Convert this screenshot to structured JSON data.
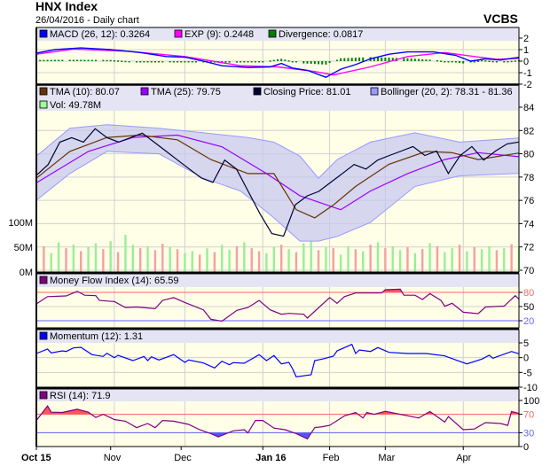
{
  "header": {
    "title": "HNX Index",
    "subtitle": "26/04/2016 - Daily chart",
    "brand": "VCBS"
  },
  "colors": {
    "plot_bg": "#ffffe8",
    "legend_bg": "#e4e4f4",
    "grid": "#d0d0d0",
    "macd": "#0000ff",
    "exp": "#ff00ff",
    "divergence": "#008000",
    "tma10": "#663300",
    "tma25": "#9900ff",
    "close": "#000033",
    "bollinger": "#9999ff",
    "bollinger_fill": "#c8c8f0",
    "vol_up": "#99ee99",
    "vol_down": "#f4a0a0",
    "mfi": "#800080",
    "momentum": "#0000ff",
    "rsi": "#800080",
    "upper_line": "#ff6666",
    "lower_line": "#6666ff"
  },
  "x_axis": {
    "labels": [
      {
        "idx": 0,
        "text": "Oct 15",
        "bold": true
      },
      {
        "idx": 20,
        "text": "Nov"
      },
      {
        "idx": 39,
        "text": "Dec"
      },
      {
        "idx": 61,
        "text": "Jan 16",
        "bold": true
      },
      {
        "idx": 79,
        "text": "Feb"
      },
      {
        "idx": 94,
        "text": "Mar"
      },
      {
        "idx": 115,
        "text": "Apr"
      }
    ],
    "grid_idx": [
      21,
      40,
      61,
      79,
      94,
      115
    ],
    "max_idx": 130
  },
  "chart_data": [
    {
      "type": "line",
      "name": "MACD panel",
      "legend": [
        {
          "label": "MACD (26, 12): 0.3264",
          "color": "#0000ff"
        },
        {
          "label": "EXP (9): 0.2448",
          "color": "#ff00ff"
        },
        {
          "label": "Divergence: 0.0817",
          "color": "#008000"
        }
      ],
      "yticks": [
        "2",
        "1",
        "0",
        "-1",
        "-2"
      ],
      "ylim": [
        -2,
        2
      ],
      "macd": [
        [
          0,
          0.7
        ],
        [
          5,
          1.0
        ],
        [
          12,
          1.15
        ],
        [
          20,
          1.0
        ],
        [
          28,
          0.75
        ],
        [
          35,
          0.4
        ],
        [
          40,
          0.35
        ],
        [
          45,
          0.0
        ],
        [
          50,
          -0.4
        ],
        [
          57,
          -0.55
        ],
        [
          63,
          -0.5
        ],
        [
          66,
          -0.2
        ],
        [
          69,
          -0.6
        ],
        [
          73,
          -0.8
        ],
        [
          78,
          -1.4
        ],
        [
          82,
          -0.7
        ],
        [
          86,
          -0.3
        ],
        [
          90,
          0.2
        ],
        [
          95,
          0.6
        ],
        [
          100,
          0.8
        ],
        [
          107,
          0.8
        ],
        [
          113,
          0.5
        ],
        [
          117,
          0.0
        ],
        [
          121,
          0.2
        ],
        [
          125,
          0.1
        ],
        [
          130,
          0.33
        ]
      ],
      "exp": [
        [
          0,
          0.6
        ],
        [
          10,
          1.05
        ],
        [
          25,
          0.85
        ],
        [
          40,
          0.4
        ],
        [
          55,
          -0.4
        ],
        [
          65,
          -0.5
        ],
        [
          75,
          -0.9
        ],
        [
          80,
          -1.2
        ],
        [
          90,
          -0.5
        ],
        [
          100,
          0.4
        ],
        [
          110,
          0.75
        ],
        [
          118,
          0.4
        ],
        [
          124,
          0.15
        ],
        [
          130,
          0.24
        ]
      ],
      "divergence": [
        [
          0,
          0.1
        ],
        [
          10,
          0.12
        ],
        [
          20,
          0.1
        ],
        [
          30,
          -0.1
        ],
        [
          40,
          -0.05
        ],
        [
          50,
          -0.15
        ],
        [
          60,
          -0.08
        ],
        [
          66,
          0.2
        ],
        [
          72,
          -0.2
        ],
        [
          78,
          -0.3
        ],
        [
          82,
          0.25
        ],
        [
          90,
          0.35
        ],
        [
          100,
          0.25
        ],
        [
          108,
          0.08
        ],
        [
          115,
          -0.2
        ],
        [
          120,
          0.1
        ],
        [
          125,
          -0.05
        ],
        [
          130,
          0.08
        ]
      ]
    },
    {
      "type": "line",
      "name": "Price panel",
      "legend": [
        {
          "label": "TMA (10): 80.07",
          "color": "#663300"
        },
        {
          "label": "TMA (25): 79.75",
          "color": "#9900ff"
        },
        {
          "label": "Closing Price: 81.01",
          "color": "#000033"
        },
        {
          "label": "Bollinger (20, 2): 78.31 - 81.36",
          "color": "#9999ff"
        },
        {
          "label": "Vol: 49.78M",
          "color": "#99ff99"
        }
      ],
      "yticks": [
        "84",
        "82",
        "80",
        "78",
        "76",
        "74",
        "72",
        "70"
      ],
      "ylim": [
        70,
        84
      ],
      "vol_ticks": [
        "100M",
        "50M",
        "0M"
      ],
      "vol_lim": [
        0,
        250
      ],
      "close": [
        78.15,
        79.08,
        81,
        81.38,
        81,
        82.15,
        81.38,
        81,
        81.38,
        81.77,
        81,
        80.23,
        79.46,
        78.69,
        77.92,
        77.54,
        79.46,
        78.69,
        76.77,
        74.85,
        73.15,
        72.92,
        75.62,
        76.38,
        76.77,
        77.54,
        78.31,
        79.08,
        78.69,
        79.46,
        79.85,
        80.23,
        80.62,
        79.85,
        80.23,
        78.31,
        79.85,
        80.62,
        79.46,
        80.23,
        80.85,
        81.01
      ],
      "tma10": [
        [
          0,
          77.9
        ],
        [
          9,
          80.2
        ],
        [
          19,
          81.4
        ],
        [
          28,
          81.6
        ],
        [
          38,
          81.2
        ],
        [
          47,
          79.5
        ],
        [
          57,
          78.3
        ],
        [
          64,
          78.3
        ],
        [
          70,
          75.2
        ],
        [
          75,
          74.5
        ],
        [
          80,
          75.6
        ],
        [
          86,
          77.2
        ],
        [
          95,
          79.1
        ],
        [
          105,
          80.2
        ],
        [
          112,
          80.1
        ],
        [
          119,
          79.5
        ],
        [
          130,
          80.07
        ]
      ],
      "tma25": [
        [
          0,
          77.5
        ],
        [
          14,
          80.2
        ],
        [
          26,
          81.4
        ],
        [
          38,
          81.6
        ],
        [
          50,
          80.6
        ],
        [
          62,
          78.3
        ],
        [
          71,
          76.4
        ],
        [
          82,
          75.2
        ],
        [
          90,
          76.8
        ],
        [
          100,
          78.3
        ],
        [
          110,
          79.5
        ],
        [
          119,
          80.1
        ],
        [
          130,
          79.75
        ]
      ],
      "boll_upper": [
        [
          0,
          79.8
        ],
        [
          9,
          82.2
        ],
        [
          19,
          82.5
        ],
        [
          33,
          82.2
        ],
        [
          45,
          81.8
        ],
        [
          57,
          81.4
        ],
        [
          64,
          81
        ],
        [
          71,
          79.8
        ],
        [
          76,
          77.9
        ],
        [
          81,
          79.5
        ],
        [
          90,
          81
        ],
        [
          102,
          81.8
        ],
        [
          114,
          81
        ],
        [
          130,
          81.36
        ]
      ],
      "boll_lower": [
        [
          0,
          76
        ],
        [
          9,
          78.3
        ],
        [
          19,
          80.2
        ],
        [
          33,
          80
        ],
        [
          45,
          77.9
        ],
        [
          55,
          76.8
        ],
        [
          64,
          74.5
        ],
        [
          71,
          72.5
        ],
        [
          76,
          72.5
        ],
        [
          81,
          72.9
        ],
        [
          90,
          74.1
        ],
        [
          102,
          77.2
        ],
        [
          114,
          78.1
        ],
        [
          130,
          78.31
        ]
      ],
      "volume_m": [
        45,
        52,
        38,
        60,
        48,
        55,
        42,
        50,
        58,
        46,
        62,
        40,
        75,
        55,
        48,
        52,
        44,
        57,
        50,
        46,
        38,
        42,
        35,
        48,
        40,
        55,
        45,
        52,
        60,
        48,
        42,
        38,
        50,
        55,
        46,
        40,
        58,
        62,
        44,
        50,
        48,
        35,
        52,
        46,
        42,
        55,
        60,
        48,
        52,
        44,
        50,
        38,
        46,
        58,
        52,
        40,
        48,
        55,
        42,
        50,
        46,
        52,
        44,
        48,
        56,
        50
      ],
      "volume_up": [
        1,
        0,
        1,
        1,
        0,
        1,
        0,
        1,
        1,
        0,
        1,
        0,
        1,
        1,
        0,
        1,
        0,
        0,
        1,
        0,
        1,
        1,
        0,
        1,
        0,
        1,
        1,
        0,
        1,
        0,
        0,
        1,
        1,
        0,
        1,
        0,
        1,
        1,
        0,
        1,
        0,
        1,
        1,
        0,
        1,
        0,
        1,
        0,
        1,
        1,
        0,
        1,
        0,
        1,
        0,
        1,
        1,
        0,
        1,
        0,
        1,
        1,
        0,
        1,
        0,
        1
      ]
    },
    {
      "type": "line",
      "name": "Money Flow Index",
      "legend": [
        {
          "label": "Money Flow Index (14): 65.59",
          "color": "#800080"
        }
      ],
      "yticks": [
        "80",
        "50",
        "20"
      ],
      "ylim": [
        20,
        80
      ],
      "upper": 80,
      "lower": 20,
      "values": [
        [
          0,
          55.6
        ],
        [
          3,
          71
        ],
        [
          8,
          72.5
        ],
        [
          11,
          82
        ],
        [
          13,
          74
        ],
        [
          16,
          73
        ],
        [
          17,
          63
        ],
        [
          21,
          60.5
        ],
        [
          24,
          48
        ],
        [
          27,
          49
        ],
        [
          32,
          45.5
        ],
        [
          34,
          63
        ],
        [
          37,
          69
        ],
        [
          40,
          58.6
        ],
        [
          45,
          43
        ],
        [
          47,
          23
        ],
        [
          50,
          19
        ],
        [
          54,
          42
        ],
        [
          57,
          48
        ],
        [
          60,
          63
        ],
        [
          63,
          43
        ],
        [
          66,
          33.7
        ],
        [
          68,
          35.5
        ],
        [
          72,
          33.7
        ],
        [
          73,
          25.6
        ],
        [
          79,
          69
        ],
        [
          81,
          57
        ],
        [
          83,
          71
        ],
        [
          86,
          78.7
        ],
        [
          93,
          78.7
        ],
        [
          94,
          85.6
        ],
        [
          98,
          86.8
        ],
        [
          99,
          74
        ],
        [
          102,
          74
        ],
        [
          104,
          65
        ],
        [
          106,
          77.4
        ],
        [
          109,
          63
        ],
        [
          110,
          50.6
        ],
        [
          112,
          57
        ],
        [
          115,
          38
        ],
        [
          119,
          35
        ],
        [
          121,
          49
        ],
        [
          126,
          51
        ],
        [
          129,
          73
        ],
        [
          130,
          65.59
        ]
      ]
    },
    {
      "type": "line",
      "name": "Momentum",
      "legend": [
        {
          "label": "Momentum (12): 1.31",
          "color": "#0000ff"
        }
      ],
      "yticks": [
        "5",
        "0",
        "-5",
        "-10"
      ],
      "ylim": [
        -10,
        5
      ],
      "values": [
        [
          0,
          1.4
        ],
        [
          3,
          2.9
        ],
        [
          4,
          1.6
        ],
        [
          7,
          2.3
        ],
        [
          8,
          2.1
        ],
        [
          10,
          3.3
        ],
        [
          12,
          3.5
        ],
        [
          15,
          1.0
        ],
        [
          18,
          0.4
        ],
        [
          19,
          1.5
        ],
        [
          21,
          0
        ],
        [
          22,
          0.8
        ],
        [
          26,
          -1
        ],
        [
          29,
          0.4
        ],
        [
          30,
          -1
        ],
        [
          31,
          0.3
        ],
        [
          33,
          -0.8
        ],
        [
          37,
          1
        ],
        [
          40,
          -1.6
        ],
        [
          41,
          -0.8
        ],
        [
          45,
          -1.8
        ],
        [
          48,
          -3.5
        ],
        [
          50,
          -1.2
        ],
        [
          52,
          -2.4
        ],
        [
          53,
          -1.7
        ],
        [
          56,
          -1.9
        ],
        [
          60,
          1
        ],
        [
          62,
          -1
        ],
        [
          64,
          0.7
        ],
        [
          66,
          -2.1
        ],
        [
          68,
          -1.6
        ],
        [
          69,
          -3.7
        ],
        [
          70,
          -6.5
        ],
        [
          74,
          -5.8
        ],
        [
          75,
          -1
        ],
        [
          77,
          -0.5
        ],
        [
          80,
          0.5
        ],
        [
          81,
          2.3
        ],
        [
          85,
          4.5
        ],
        [
          86,
          1.4
        ],
        [
          87,
          2.6
        ],
        [
          90,
          2.1
        ],
        [
          92,
          3.4
        ],
        [
          95,
          1.8
        ],
        [
          100,
          1.4
        ],
        [
          105,
          1.4
        ],
        [
          110,
          0.6
        ],
        [
          113,
          -0.8
        ],
        [
          116,
          -2.1
        ],
        [
          120,
          -0.5
        ],
        [
          122,
          0.8
        ],
        [
          123,
          -0.2
        ],
        [
          128,
          2.1
        ],
        [
          130,
          1.31
        ]
      ]
    },
    {
      "type": "line",
      "name": "RSI",
      "legend": [
        {
          "label": "RSI (14): 71.9",
          "color": "#800080"
        }
      ],
      "yticks": [
        "100",
        "70",
        "30",
        "0"
      ],
      "ylim": [
        0,
        100
      ],
      "upper": 70,
      "lower": 30,
      "values": [
        [
          0,
          56.6
        ],
        [
          3,
          88
        ],
        [
          4,
          74.6
        ],
        [
          7,
          74
        ],
        [
          11,
          81
        ],
        [
          14,
          74.6
        ],
        [
          16,
          63
        ],
        [
          18,
          70
        ],
        [
          21,
          58.6
        ],
        [
          24,
          55
        ],
        [
          27,
          41
        ],
        [
          30,
          50
        ],
        [
          32,
          41
        ],
        [
          34,
          56.6
        ],
        [
          37,
          55
        ],
        [
          41,
          48
        ],
        [
          44,
          36.6
        ],
        [
          47,
          28
        ],
        [
          49,
          21
        ],
        [
          53,
          34
        ],
        [
          56,
          36.6
        ],
        [
          57,
          29.6
        ],
        [
          59,
          56.6
        ],
        [
          61,
          56.6
        ],
        [
          64,
          40
        ],
        [
          67,
          36.6
        ],
        [
          70,
          28
        ],
        [
          73,
          16.6
        ],
        [
          75,
          41
        ],
        [
          77,
          43
        ],
        [
          79,
          46
        ],
        [
          83,
          66.6
        ],
        [
          86,
          74
        ],
        [
          88,
          62
        ],
        [
          89,
          74
        ],
        [
          91,
          70
        ],
        [
          94,
          76.6
        ],
        [
          98,
          70
        ],
        [
          103,
          62
        ],
        [
          106,
          76
        ],
        [
          110,
          53
        ],
        [
          111,
          65
        ],
        [
          115,
          36.6
        ],
        [
          118,
          38
        ],
        [
          121,
          52
        ],
        [
          125,
          50
        ],
        [
          127,
          46
        ],
        [
          128,
          76
        ],
        [
          130,
          71.9
        ]
      ]
    }
  ]
}
